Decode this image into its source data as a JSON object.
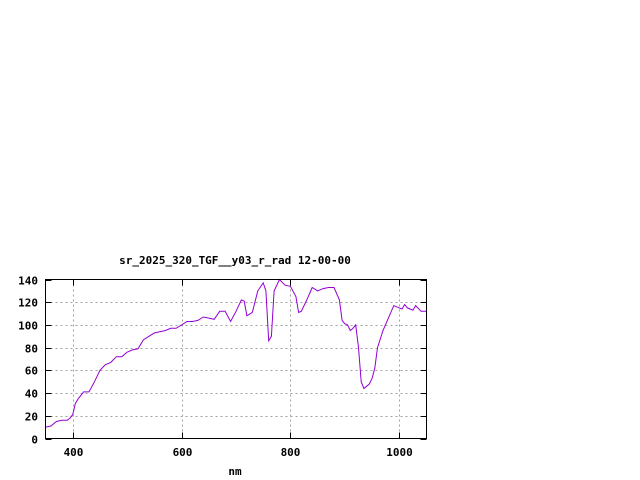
{
  "chart_data": {
    "type": "line",
    "title": "sr_2025_320_TGF__y03_r_rad 12-00-00",
    "xlabel": "nm",
    "ylabel": "",
    "xlim": [
      350,
      1050
    ],
    "ylim": [
      0,
      140
    ],
    "xticks": [
      400,
      600,
      800,
      1000
    ],
    "yticks": [
      0,
      20,
      40,
      60,
      80,
      100,
      120,
      140
    ],
    "grid": true,
    "color": "#9400d3",
    "x": [
      350,
      360,
      370,
      380,
      390,
      395,
      400,
      405,
      410,
      420,
      430,
      440,
      450,
      460,
      470,
      480,
      490,
      500,
      510,
      520,
      530,
      540,
      550,
      560,
      570,
      580,
      590,
      600,
      610,
      620,
      630,
      640,
      650,
      660,
      670,
      680,
      690,
      700,
      710,
      715,
      720,
      730,
      740,
      750,
      755,
      760,
      765,
      770,
      780,
      790,
      800,
      810,
      815,
      820,
      830,
      840,
      850,
      860,
      870,
      880,
      890,
      895,
      900,
      905,
      910,
      915,
      920,
      925,
      930,
      935,
      940,
      945,
      950,
      955,
      960,
      970,
      980,
      990,
      1000,
      1005,
      1010,
      1015,
      1020,
      1025,
      1030,
      1040,
      1050
    ],
    "y": [
      10,
      11,
      15,
      16,
      16,
      18,
      21,
      31,
      35,
      41,
      41,
      50,
      60,
      65,
      67,
      72,
      72,
      76,
      78,
      79,
      87,
      90,
      93,
      94,
      95,
      97,
      97,
      100,
      103,
      103,
      104,
      107,
      106,
      105,
      112,
      112,
      103,
      112,
      122,
      121,
      108,
      111,
      130,
      137,
      130,
      86,
      90,
      130,
      140,
      135,
      134,
      125,
      111,
      112,
      122,
      133,
      130,
      132,
      133,
      133,
      122,
      104,
      101,
      100,
      95,
      97,
      100,
      80,
      50,
      44,
      46,
      48,
      53,
      62,
      80,
      95,
      106,
      117,
      115,
      114,
      118,
      115,
      114,
      113,
      117,
      112,
      112
    ]
  }
}
